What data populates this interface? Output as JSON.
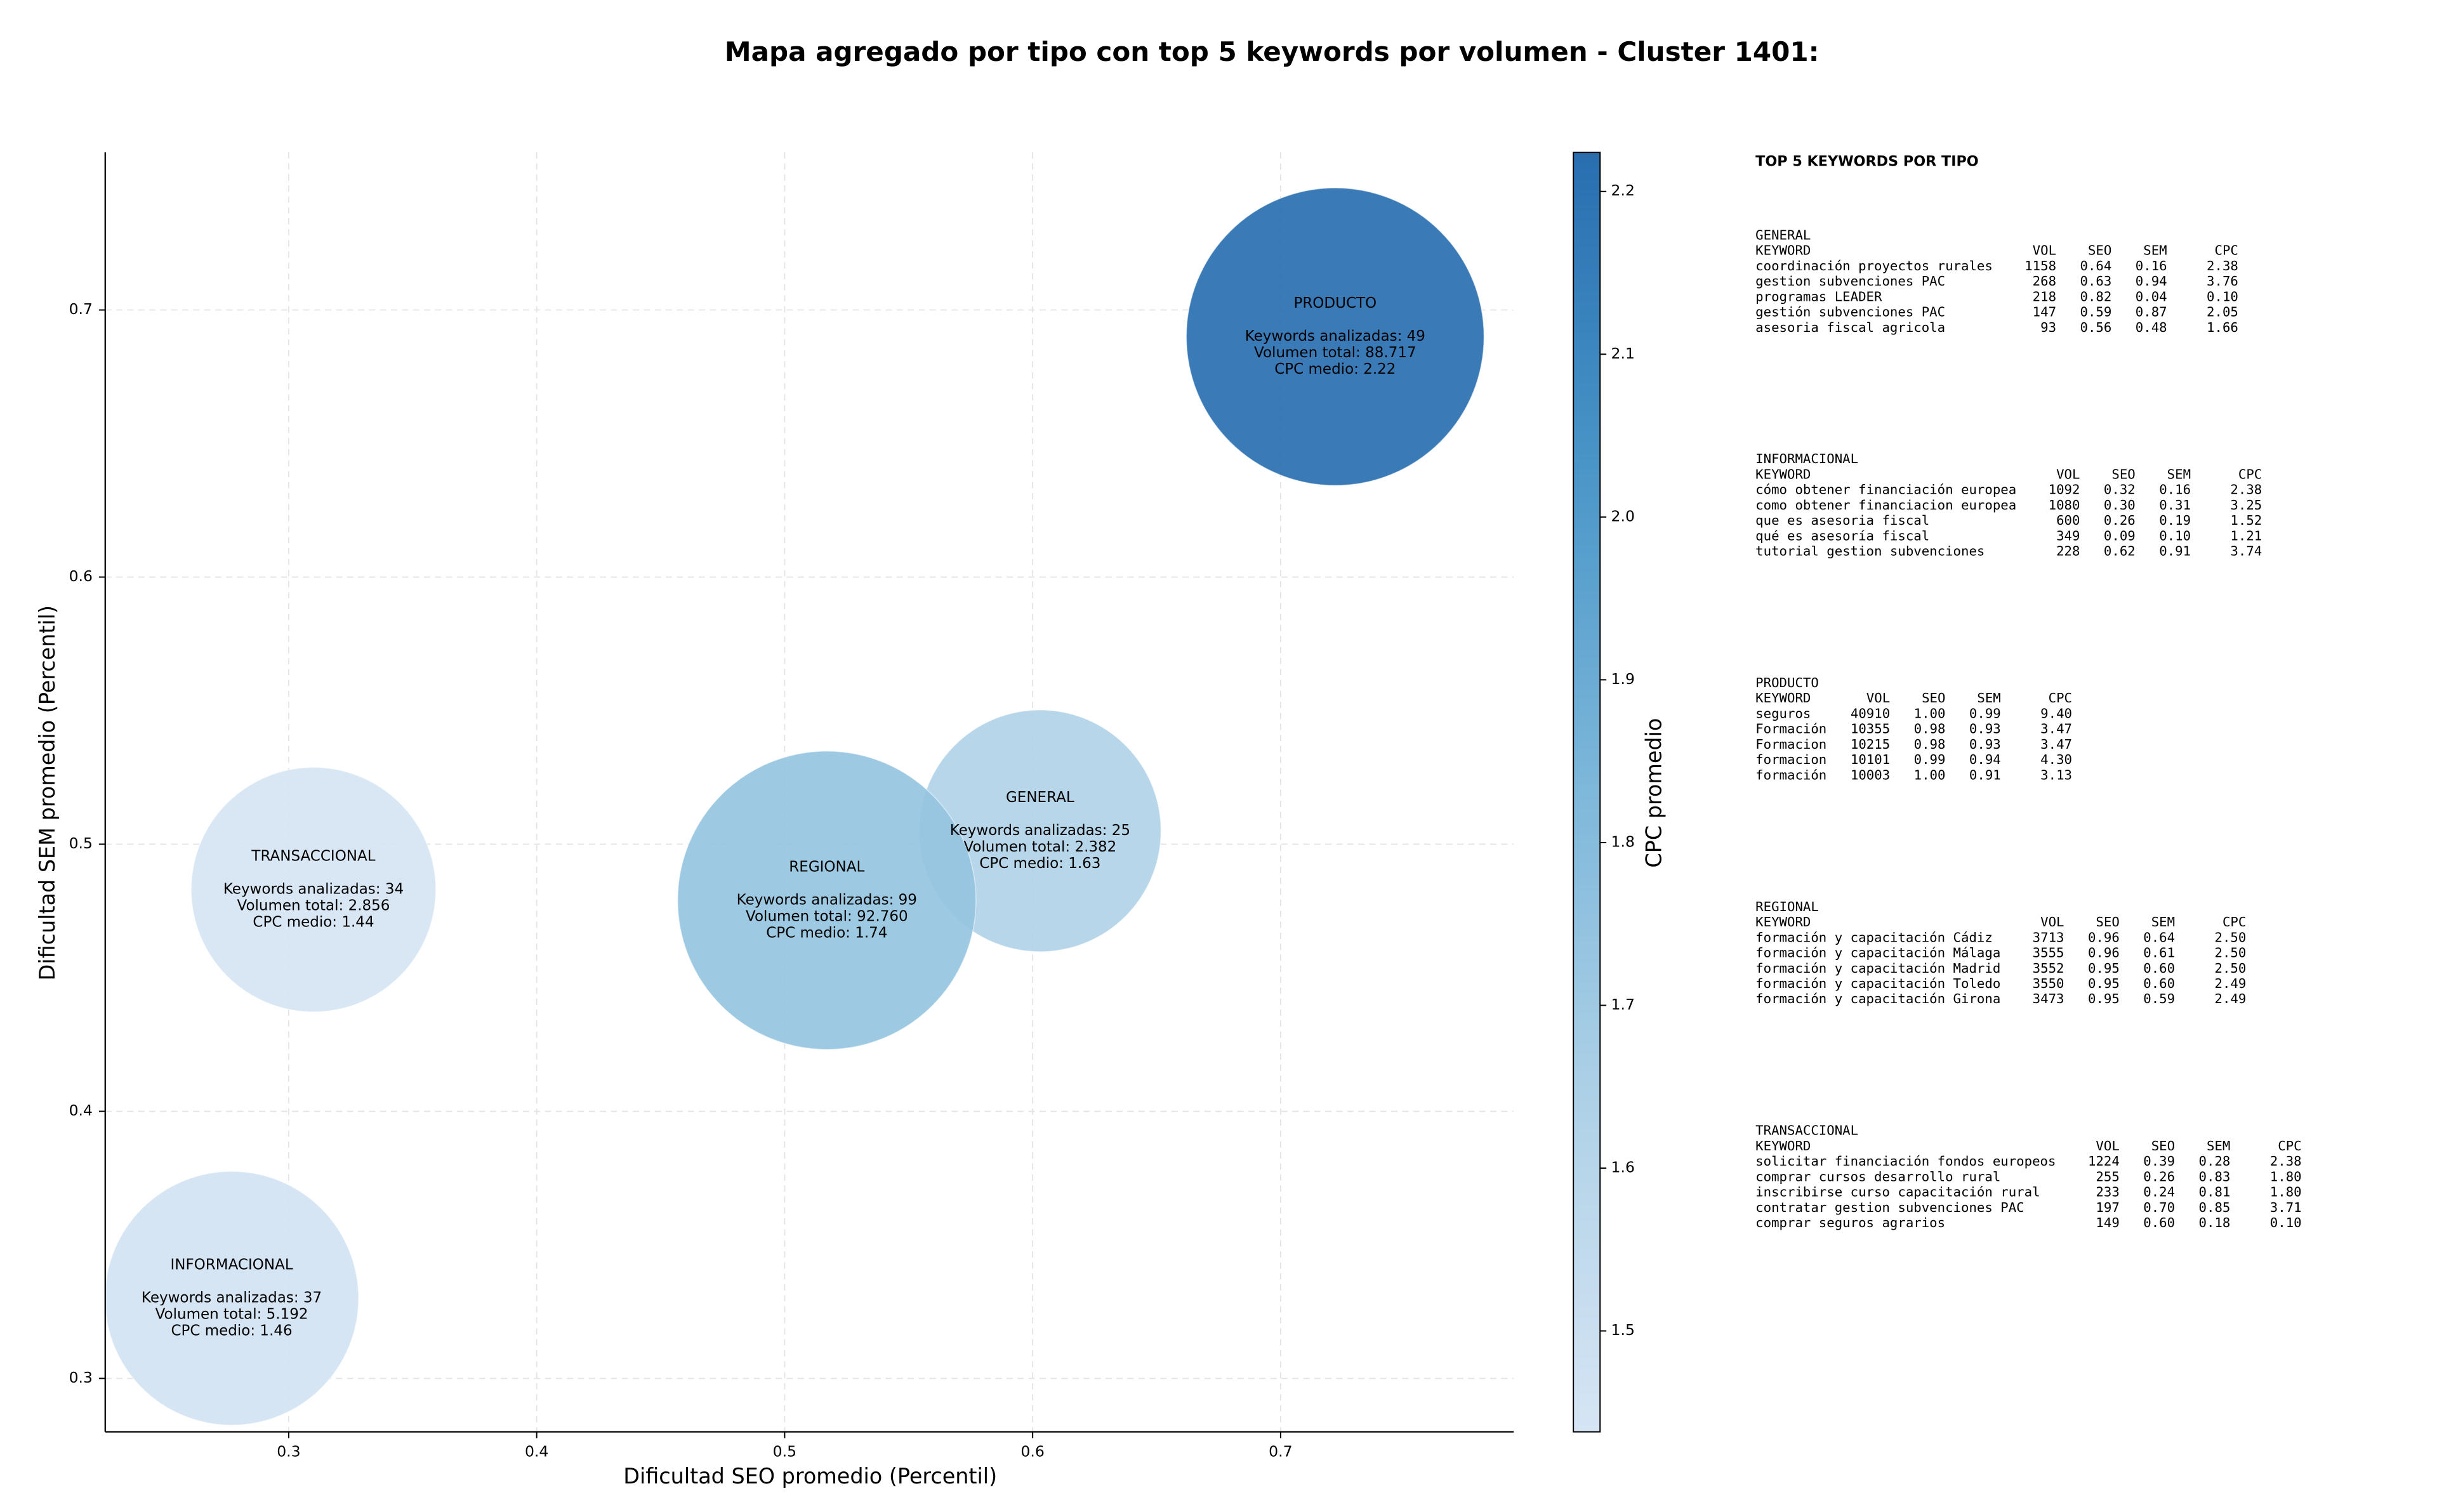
{
  "chart_data": {
    "type": "scatter",
    "title": "Mapa agregado por tipo con top 5 keywords por volumen - Cluster 1401:",
    "xlabel": "Dificultad SEO promedio (Percentil)",
    "ylabel": "Dificultad SEM promedio (Percentil)",
    "xlim": [
      0.226,
      0.794
    ],
    "ylim": [
      0.28,
      0.759
    ],
    "xticks": [
      0.3,
      0.4,
      0.5,
      0.6,
      0.7
    ],
    "yticks": [
      0.3,
      0.4,
      0.5,
      0.6,
      0.7
    ],
    "grid": true,
    "colorbar": {
      "label": "CPC promedio",
      "lim": [
        1.438,
        2.224
      ],
      "ticks": [
        1.5,
        1.6,
        1.7,
        1.8,
        1.9,
        {
          "value": 2,
          "label": "2.0"
        },
        2.1,
        2.2
      ]
    },
    "series": [
      {
        "name": "GENERAL",
        "x": [
          0.603
        ],
        "y": [
          0.505
        ],
        "volume": [
          2382
        ],
        "cpc": [
          1.63
        ],
        "annotation": [
          "Keywords analizadas: 25",
          "Volumen total: 2.382",
          "CPC medio: 1.63"
        ]
      },
      {
        "name": "INFORMACIONAL",
        "x": [
          0.277
        ],
        "y": [
          0.33
        ],
        "volume": [
          5192
        ],
        "cpc": [
          1.46
        ],
        "annotation": [
          "Keywords analizadas: 37",
          "Volumen total: 5.192",
          "CPC medio: 1.46"
        ]
      },
      {
        "name": "PRODUCTO",
        "x": [
          0.722
        ],
        "y": [
          0.69
        ],
        "volume": [
          88717
        ],
        "cpc": [
          2.22
        ],
        "annotation": [
          "Keywords analizadas: 49",
          "Volumen total: 88.717",
          "CPC medio: 2.22"
        ]
      },
      {
        "name": "REGIONAL",
        "x": [
          0.517
        ],
        "y": [
          0.479
        ],
        "volume": [
          92760
        ],
        "cpc": [
          1.74
        ],
        "annotation": [
          "Keywords analizadas: 99",
          "Volumen total: 92.760",
          "CPC medio: 1.74"
        ]
      },
      {
        "name": "TRANSACCIONAL",
        "x": [
          0.31
        ],
        "y": [
          0.483
        ],
        "volume": [
          2856
        ],
        "cpc": [
          1.44
        ],
        "annotation": [
          "Keywords analizadas: 34",
          "Volumen total: 2.856",
          "CPC medio: 1.44"
        ]
      }
    ]
  },
  "panel": {
    "title": "TOP 5 KEYWORDS POR TIPO",
    "columns": [
      "KEYWORD",
      "VOL",
      "SEO",
      "SEM",
      "CPC"
    ],
    "sections": [
      {
        "name": "GENERAL",
        "rows": [
          [
            "coordinación proyectos rurales",
            "1158",
            "0.64",
            "0.16",
            "2.38"
          ],
          [
            "gestion subvenciones PAC",
            "268",
            "0.63",
            "0.94",
            "3.76"
          ],
          [
            "programas LEADER",
            "218",
            "0.82",
            "0.04",
            "0.10"
          ],
          [
            "gestión subvenciones PAC",
            "147",
            "0.59",
            "0.87",
            "2.05"
          ],
          [
            "asesoria fiscal agricola",
            "93",
            "0.56",
            "0.48",
            "1.66"
          ]
        ]
      },
      {
        "name": "INFORMACIONAL",
        "rows": [
          [
            "cómo obtener financiación europea",
            "1092",
            "0.32",
            "0.16",
            "2.38"
          ],
          [
            "como obtener financiacion europea",
            "1080",
            "0.30",
            "0.31",
            "3.25"
          ],
          [
            "que es asesoria fiscal",
            "600",
            "0.26",
            "0.19",
            "1.52"
          ],
          [
            "qué es asesoría fiscal",
            "349",
            "0.09",
            "0.10",
            "1.21"
          ],
          [
            "tutorial gestion subvenciones",
            "228",
            "0.62",
            "0.91",
            "3.74"
          ]
        ]
      },
      {
        "name": "PRODUCTO",
        "rows": [
          [
            "seguros",
            "40910",
            "1.00",
            "0.99",
            "9.40"
          ],
          [
            "Formación",
            "10355",
            "0.98",
            "0.93",
            "3.47"
          ],
          [
            "Formacion",
            "10215",
            "0.98",
            "0.93",
            "3.47"
          ],
          [
            "formacion",
            "10101",
            "0.99",
            "0.94",
            "4.30"
          ],
          [
            "formación",
            "10003",
            "1.00",
            "0.91",
            "3.13"
          ]
        ]
      },
      {
        "name": "REGIONAL",
        "rows": [
          [
            "formación y capacitación Cádiz",
            "3713",
            "0.96",
            "0.64",
            "2.50"
          ],
          [
            "formación y capacitación Málaga",
            "3555",
            "0.96",
            "0.61",
            "2.50"
          ],
          [
            "formación y capacitación Madrid",
            "3552",
            "0.95",
            "0.60",
            "2.50"
          ],
          [
            "formación y capacitación Toledo",
            "3550",
            "0.95",
            "0.60",
            "2.49"
          ],
          [
            "formación y capacitación Girona",
            "3473",
            "0.95",
            "0.59",
            "2.49"
          ]
        ]
      },
      {
        "name": "TRANSACCIONAL",
        "rows": [
          [
            "solicitar financiación fondos europeos",
            "1224",
            "0.39",
            "0.28",
            "2.38"
          ],
          [
            "comprar cursos desarrollo rural",
            "255",
            "0.26",
            "0.83",
            "1.80"
          ],
          [
            "inscribirse curso capacitación rural",
            "233",
            "0.24",
            "0.81",
            "1.80"
          ],
          [
            "contratar gestion subvenciones PAC",
            "197",
            "0.70",
            "0.85",
            "3.71"
          ],
          [
            "comprar seguros agrarios",
            "149",
            "0.60",
            "0.18",
            "0.10"
          ]
        ]
      }
    ]
  }
}
